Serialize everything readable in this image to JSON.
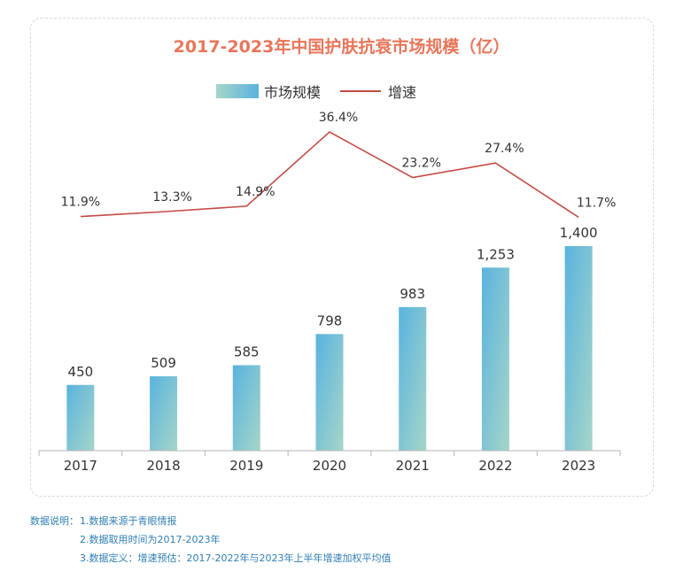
{
  "colors": {
    "title": "#e8765a",
    "bar_top": "#5ab3df",
    "bar_bottom": "#a6d5c8",
    "line": "#c44a43",
    "text": "#333333",
    "axis": "#b5b5b5",
    "notes": "#2f7fb6"
  },
  "chart_data": {
    "type": "bar",
    "title": "2017-2023年中国护肤抗衰市场规模（亿）",
    "categories": [
      "2017",
      "2018",
      "2019",
      "2020",
      "2021",
      "2022",
      "2023"
    ],
    "series": [
      {
        "name": "市场规模",
        "type": "bar",
        "values": [
          450,
          509,
          585,
          798,
          983,
          1253,
          1400
        ],
        "labels": [
          "450",
          "509",
          "585",
          "798",
          "983",
          "1,253",
          "1,400"
        ]
      },
      {
        "name": "增速",
        "type": "line",
        "values": [
          11.9,
          13.3,
          14.9,
          36.4,
          23.2,
          27.4,
          11.7
        ],
        "labels": [
          "11.9%",
          "13.3%",
          "14.9%",
          "36.4%",
          "23.2%",
          "27.4%",
          "11.7%"
        ]
      }
    ],
    "legend": "top-center",
    "grid": false
  },
  "notes": {
    "label": "数据说明：",
    "items": [
      "1.数据来源于青眼情报",
      "2.数据取用时间为2017-2023年",
      "3.数据定义：增速预估：2017-2022年与2023年上半年增速加权平均值"
    ]
  }
}
